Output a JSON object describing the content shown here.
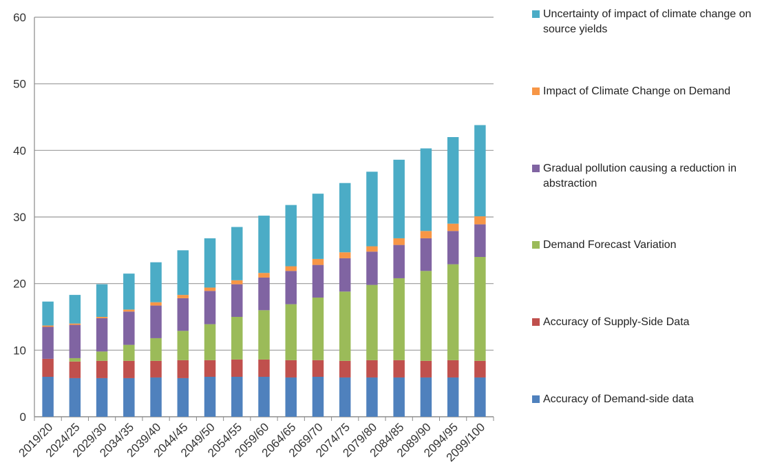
{
  "chart_data": {
    "type": "stacked-bar",
    "categories": [
      "2019/20",
      "2024/25",
      "2029/30",
      "2034/35",
      "2039/40",
      "2044/45",
      "2049/50",
      "2054/55",
      "2059/60",
      "2064/65",
      "2069/70",
      "2074/75",
      "2079/80",
      "2084/85",
      "2089/90",
      "2094/95",
      "2099/100"
    ],
    "series": [
      {
        "name": "Accuracy of Demand-side data",
        "color": "#4F81BD",
        "values": [
          6.0,
          5.8,
          5.8,
          5.8,
          5.9,
          5.8,
          6.0,
          6.0,
          6.0,
          5.9,
          6.0,
          5.9,
          5.9,
          5.9,
          5.9,
          5.9,
          5.9
        ]
      },
      {
        "name": "Accuracy of Supply-Side Data",
        "color": "#C0504D",
        "values": [
          2.7,
          2.5,
          2.6,
          2.6,
          2.5,
          2.7,
          2.5,
          2.6,
          2.6,
          2.6,
          2.5,
          2.5,
          2.6,
          2.6,
          2.5,
          2.6,
          2.5
        ]
      },
      {
        "name": "Demand Forecast Variation",
        "color": "#9BBB59",
        "values": [
          0,
          0.5,
          1.4,
          2.4,
          3.4,
          4.4,
          5.4,
          6.4,
          7.4,
          8.4,
          9.4,
          10.4,
          11.3,
          12.3,
          13.5,
          14.4,
          15.6
        ]
      },
      {
        "name": "Gradual pollution causing a reduction in abstraction",
        "color": "#8064A2",
        "values": [
          4.8,
          5.0,
          5.0,
          5.0,
          4.9,
          4.9,
          5.0,
          4.9,
          4.9,
          5.0,
          4.9,
          5.0,
          5.0,
          5.0,
          4.9,
          5.0,
          4.9
        ]
      },
      {
        "name": "Impact of Climate Change on Demand",
        "color": "#F79646",
        "values": [
          0.2,
          0.2,
          0.2,
          0.3,
          0.5,
          0.5,
          0.5,
          0.6,
          0.7,
          0.7,
          0.9,
          0.9,
          0.8,
          1.0,
          1.1,
          1.1,
          1.2
        ]
      },
      {
        "name": "Uncertainty of impact of climate change on source yields",
        "color": "#4BACC6",
        "values": [
          3.6,
          4.3,
          4.9,
          5.4,
          6.0,
          6.7,
          7.4,
          8.0,
          8.6,
          9.2,
          9.8,
          10.4,
          11.2,
          11.8,
          12.4,
          13.0,
          13.7
        ]
      }
    ],
    "ylim": [
      0,
      60
    ],
    "yticks": [
      0,
      10,
      20,
      30,
      40,
      50,
      60
    ],
    "grid": true,
    "legend": "right"
  }
}
